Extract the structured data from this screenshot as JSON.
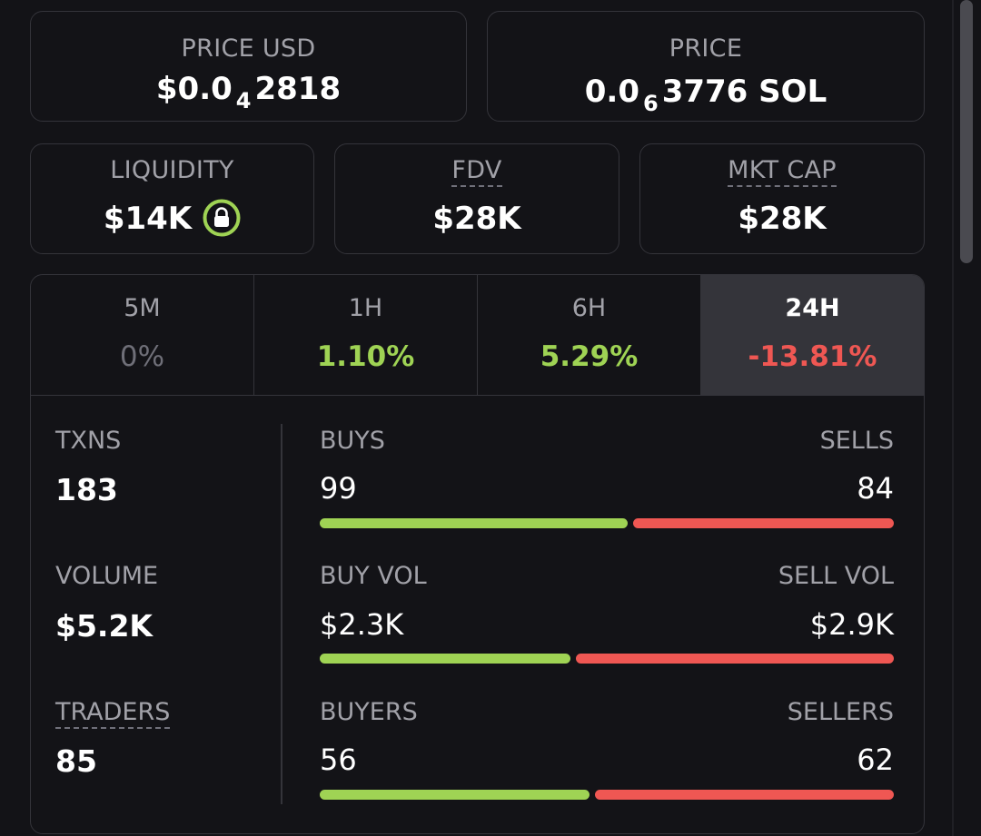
{
  "price_usd": {
    "label": "PRICE USD",
    "prefix": "$0.0",
    "zeros": "4",
    "digits": "2818"
  },
  "price_sol": {
    "label": "PRICE",
    "prefix": "0.0",
    "zeros": "6",
    "digits": "3776",
    "unit": "SOL"
  },
  "liquidity": {
    "label": "LIQUIDITY",
    "value": "$14K",
    "lock_icon": "lock-icon"
  },
  "fdv": {
    "label": "FDV",
    "value": "$28K"
  },
  "mkt_cap": {
    "label": "MKT CAP",
    "value": "$28K"
  },
  "timeframes": [
    {
      "label": "5M",
      "change": "0%"
    },
    {
      "label": "1H",
      "change": "1.10%"
    },
    {
      "label": "6H",
      "change": "5.29%"
    },
    {
      "label": "24H",
      "change": "-13.81%"
    }
  ],
  "active_timeframe": "24H",
  "stats": {
    "txns": {
      "label": "TXNS",
      "value": "183"
    },
    "volume": {
      "label": "VOLUME",
      "value": "$5.2K"
    },
    "traders": {
      "label": "TRADERS",
      "value": "85"
    }
  },
  "splits": {
    "buys": {
      "left_label": "BUYS",
      "right_label": "SELLS",
      "left_value": "99",
      "right_value": "84",
      "buy_fraction": 0.541
    },
    "volume": {
      "left_label": "BUY VOL",
      "right_label": "SELL VOL",
      "left_value": "$2.3K",
      "right_value": "$2.9K",
      "buy_fraction": 0.442
    },
    "traders": {
      "left_label": "BUYERS",
      "right_label": "SELLERS",
      "left_value": "56",
      "right_value": "62",
      "buy_fraction": 0.475
    }
  },
  "colors": {
    "positive": "#9fd354",
    "negative": "#ef5753",
    "neutral": "#6f6f78",
    "border": "#34343a",
    "background": "#131317"
  }
}
